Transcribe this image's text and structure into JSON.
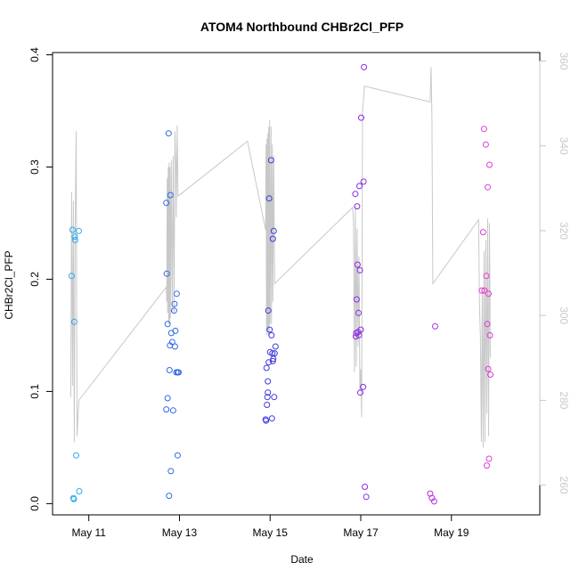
{
  "chart_data": {
    "type": "scatter",
    "title": "ATOM4 Northbound CHBr2Cl_PFP",
    "xlabel": "Date",
    "ylabel": "CHBr2Cl_PFP",
    "x_unit": "days since May 1 (day 10 = May 11)",
    "xlim": [
      9.2,
      19.95
    ],
    "ylim": [
      -0.01,
      0.402
    ],
    "y2lim": [
      253,
      362
    ],
    "x_ticks": [
      {
        "value": 10,
        "label": "May 11"
      },
      {
        "value": 12,
        "label": "May 13"
      },
      {
        "value": 14,
        "label": "May 15"
      },
      {
        "value": 16,
        "label": "May 17"
      },
      {
        "value": 18,
        "label": "May 19"
      }
    ],
    "y_ticks": [
      {
        "value": 0.0,
        "label": "0.0"
      },
      {
        "value": 0.1,
        "label": "0.1"
      },
      {
        "value": 0.2,
        "label": "0.2"
      },
      {
        "value": 0.3,
        "label": "0.3"
      },
      {
        "value": 0.4,
        "label": "0.4"
      }
    ],
    "y2_ticks": [
      {
        "value": 260,
        "label": "260"
      },
      {
        "value": 280,
        "label": "280"
      },
      {
        "value": 300,
        "label": "300"
      },
      {
        "value": 320,
        "label": "320"
      },
      {
        "value": 340,
        "label": "340"
      },
      {
        "value": 360,
        "label": "360"
      }
    ],
    "points": [
      {
        "x": 9.62,
        "y": 0.203,
        "color": "#29a9f0"
      },
      {
        "x": 9.64,
        "y": 0.244,
        "color": "#29a9f0"
      },
      {
        "x": 9.66,
        "y": 0.005,
        "color": "#29a9f0"
      },
      {
        "x": 9.67,
        "y": 0.004,
        "color": "#29a9f0"
      },
      {
        "x": 9.68,
        "y": 0.162,
        "color": "#29a9f0"
      },
      {
        "x": 9.69,
        "y": 0.238,
        "color": "#29a9f0"
      },
      {
        "x": 9.7,
        "y": 0.235,
        "color": "#29a9f0"
      },
      {
        "x": 9.72,
        "y": 0.043,
        "color": "#29a9f0"
      },
      {
        "x": 9.78,
        "y": 0.243,
        "color": "#29a9f0"
      },
      {
        "x": 9.79,
        "y": 0.011,
        "color": "#29a9f0"
      },
      {
        "x": 11.71,
        "y": 0.268,
        "color": "#2f6be8"
      },
      {
        "x": 11.71,
        "y": 0.084,
        "color": "#2f6be8"
      },
      {
        "x": 11.72,
        "y": 0.205,
        "color": "#2f6be8"
      },
      {
        "x": 11.74,
        "y": 0.16,
        "color": "#2f6be8"
      },
      {
        "x": 11.74,
        "y": 0.094,
        "color": "#2f6be8"
      },
      {
        "x": 11.76,
        "y": 0.33,
        "color": "#2f6be8"
      },
      {
        "x": 11.77,
        "y": 0.007,
        "color": "#2f6be8"
      },
      {
        "x": 11.78,
        "y": 0.119,
        "color": "#2f6be8"
      },
      {
        "x": 11.79,
        "y": 0.141,
        "color": "#2f6be8"
      },
      {
        "x": 11.8,
        "y": 0.275,
        "color": "#2f6be8"
      },
      {
        "x": 11.81,
        "y": 0.029,
        "color": "#2f6be8"
      },
      {
        "x": 11.82,
        "y": 0.152,
        "color": "#2f6be8"
      },
      {
        "x": 11.84,
        "y": 0.144,
        "color": "#2f6be8"
      },
      {
        "x": 11.86,
        "y": 0.083,
        "color": "#2f6be8"
      },
      {
        "x": 11.88,
        "y": 0.172,
        "color": "#2f6be8"
      },
      {
        "x": 11.89,
        "y": 0.178,
        "color": "#2f6be8"
      },
      {
        "x": 11.9,
        "y": 0.14,
        "color": "#2f6be8"
      },
      {
        "x": 11.91,
        "y": 0.154,
        "color": "#2f6be8"
      },
      {
        "x": 11.93,
        "y": 0.117,
        "color": "#2f6be8"
      },
      {
        "x": 11.94,
        "y": 0.187,
        "color": "#2f6be8"
      },
      {
        "x": 11.96,
        "y": 0.043,
        "color": "#2f6be8"
      },
      {
        "x": 11.96,
        "y": 0.117,
        "color": "#2f6be8"
      },
      {
        "x": 11.98,
        "y": 0.117,
        "color": "#2f6be8"
      },
      {
        "x": 13.9,
        "y": 0.075,
        "color": "#3d3ae0"
      },
      {
        "x": 13.91,
        "y": 0.074,
        "color": "#3d3ae0"
      },
      {
        "x": 13.92,
        "y": 0.121,
        "color": "#3d3ae0"
      },
      {
        "x": 13.93,
        "y": 0.088,
        "color": "#3d3ae0"
      },
      {
        "x": 13.94,
        "y": 0.095,
        "color": "#3d3ae0"
      },
      {
        "x": 13.95,
        "y": 0.109,
        "color": "#3d3ae0"
      },
      {
        "x": 13.95,
        "y": 0.099,
        "color": "#3d3ae0"
      },
      {
        "x": 13.96,
        "y": 0.172,
        "color": "#3d3ae0"
      },
      {
        "x": 13.97,
        "y": 0.126,
        "color": "#3d3ae0"
      },
      {
        "x": 13.98,
        "y": 0.272,
        "color": "#3d3ae0"
      },
      {
        "x": 13.99,
        "y": 0.155,
        "color": "#3d3ae0"
      },
      {
        "x": 14.0,
        "y": 0.135,
        "color": "#3d3ae0"
      },
      {
        "x": 14.02,
        "y": 0.306,
        "color": "#3d3ae0"
      },
      {
        "x": 14.03,
        "y": 0.15,
        "color": "#3d3ae0"
      },
      {
        "x": 14.04,
        "y": 0.076,
        "color": "#3d3ae0"
      },
      {
        "x": 14.05,
        "y": 0.134,
        "color": "#3d3ae0"
      },
      {
        "x": 14.06,
        "y": 0.236,
        "color": "#3d3ae0"
      },
      {
        "x": 14.06,
        "y": 0.127,
        "color": "#3d3ae0"
      },
      {
        "x": 14.07,
        "y": 0.129,
        "color": "#3d3ae0"
      },
      {
        "x": 14.08,
        "y": 0.243,
        "color": "#3d3ae0"
      },
      {
        "x": 14.09,
        "y": 0.095,
        "color": "#3d3ae0"
      },
      {
        "x": 14.1,
        "y": 0.134,
        "color": "#3d3ae0"
      },
      {
        "x": 14.12,
        "y": 0.14,
        "color": "#3d3ae0"
      },
      {
        "x": 15.88,
        "y": 0.276,
        "color": "#8a2be2"
      },
      {
        "x": 15.89,
        "y": 0.149,
        "color": "#8a2be2"
      },
      {
        "x": 15.9,
        "y": 0.152,
        "color": "#8a2be2"
      },
      {
        "x": 15.91,
        "y": 0.182,
        "color": "#8a2be2"
      },
      {
        "x": 15.92,
        "y": 0.265,
        "color": "#8a2be2"
      },
      {
        "x": 15.93,
        "y": 0.213,
        "color": "#8a2be2"
      },
      {
        "x": 15.94,
        "y": 0.153,
        "color": "#8a2be2"
      },
      {
        "x": 15.95,
        "y": 0.17,
        "color": "#8a2be2"
      },
      {
        "x": 15.96,
        "y": 0.15,
        "color": "#8a2be2"
      },
      {
        "x": 15.97,
        "y": 0.283,
        "color": "#8a2be2"
      },
      {
        "x": 15.98,
        "y": 0.208,
        "color": "#8a2be2"
      },
      {
        "x": 15.99,
        "y": 0.099,
        "color": "#8a2be2"
      },
      {
        "x": 16.0,
        "y": 0.155,
        "color": "#8a2be2"
      },
      {
        "x": 16.01,
        "y": 0.344,
        "color": "#8a2be2"
      },
      {
        "x": 16.05,
        "y": 0.104,
        "color": "#8a2be2"
      },
      {
        "x": 16.06,
        "y": 0.287,
        "color": "#8a2be2"
      },
      {
        "x": 16.07,
        "y": 0.389,
        "color": "#8a2be2"
      },
      {
        "x": 16.09,
        "y": 0.015,
        "color": "#8a2be2"
      },
      {
        "x": 16.12,
        "y": 0.006,
        "color": "#8a2be2"
      },
      {
        "x": 17.53,
        "y": 0.009,
        "color": "#b52fe0"
      },
      {
        "x": 17.57,
        "y": 0.005,
        "color": "#b52fe0"
      },
      {
        "x": 17.62,
        "y": 0.002,
        "color": "#b52fe0"
      },
      {
        "x": 17.64,
        "y": 0.158,
        "color": "#b52fe0"
      },
      {
        "x": 18.67,
        "y": 0.19,
        "color": "#e23ad6"
      },
      {
        "x": 18.7,
        "y": 0.242,
        "color": "#e23ad6"
      },
      {
        "x": 18.72,
        "y": 0.334,
        "color": "#e23ad6"
      },
      {
        "x": 18.73,
        "y": 0.19,
        "color": "#e23ad6"
      },
      {
        "x": 18.76,
        "y": 0.32,
        "color": "#e23ad6"
      },
      {
        "x": 18.77,
        "y": 0.203,
        "color": "#e23ad6"
      },
      {
        "x": 18.78,
        "y": 0.034,
        "color": "#e23ad6"
      },
      {
        "x": 18.79,
        "y": 0.16,
        "color": "#e23ad6"
      },
      {
        "x": 18.8,
        "y": 0.282,
        "color": "#e23ad6"
      },
      {
        "x": 18.81,
        "y": 0.12,
        "color": "#e23ad6"
      },
      {
        "x": 18.82,
        "y": 0.187,
        "color": "#e23ad6"
      },
      {
        "x": 18.83,
        "y": 0.04,
        "color": "#e23ad6"
      },
      {
        "x": 18.84,
        "y": 0.302,
        "color": "#e23ad6"
      },
      {
        "x": 18.85,
        "y": 0.15,
        "color": "#e23ad6"
      },
      {
        "x": 18.86,
        "y": 0.115,
        "color": "#e23ad6"
      }
    ],
    "trace": [
      [
        9.6,
        0.095
      ],
      [
        9.62,
        0.278
      ],
      [
        9.64,
        0.105
      ],
      [
        9.66,
        0.27
      ],
      [
        9.68,
        0.055
      ],
      [
        9.7,
        0.25
      ],
      [
        9.72,
        0.332
      ],
      [
        9.74,
        0.06
      ],
      [
        9.78,
        0.092
      ],
      [
        11.71,
        0.193
      ],
      [
        11.72,
        0.18
      ],
      [
        11.73,
        0.29
      ],
      [
        11.74,
        0.17
      ],
      [
        11.75,
        0.3
      ],
      [
        11.76,
        0.16
      ],
      [
        11.77,
        0.304
      ],
      [
        11.78,
        0.16
      ],
      [
        11.79,
        0.3
      ],
      [
        11.8,
        0.165
      ],
      [
        11.82,
        0.306
      ],
      [
        11.84,
        0.17
      ],
      [
        11.86,
        0.31
      ],
      [
        11.88,
        0.17
      ],
      [
        11.9,
        0.332
      ],
      [
        11.92,
        0.3
      ],
      [
        11.93,
        0.255
      ],
      [
        11.95,
        0.337
      ],
      [
        11.97,
        0.274
      ],
      [
        13.5,
        0.323
      ],
      [
        13.9,
        0.244
      ],
      [
        13.91,
        0.32
      ],
      [
        13.92,
        0.15
      ],
      [
        13.93,
        0.325
      ],
      [
        13.94,
        0.155
      ],
      [
        13.95,
        0.33
      ],
      [
        13.96,
        0.15
      ],
      [
        13.97,
        0.336
      ],
      [
        13.98,
        0.15
      ],
      [
        13.99,
        0.342
      ],
      [
        14.0,
        0.16
      ],
      [
        14.02,
        0.336
      ],
      [
        14.03,
        0.16
      ],
      [
        14.05,
        0.32
      ],
      [
        14.06,
        0.18
      ],
      [
        14.08,
        0.31
      ],
      [
        14.1,
        0.196
      ],
      [
        15.82,
        0.264
      ],
      [
        15.84,
        0.25
      ],
      [
        15.86,
        0.117
      ],
      [
        15.88,
        0.265
      ],
      [
        15.9,
        0.122
      ],
      [
        15.92,
        0.245
      ],
      [
        15.94,
        0.14
      ],
      [
        15.96,
        0.22
      ],
      [
        15.98,
        0.1
      ],
      [
        16.0,
        0.12
      ],
      [
        16.02,
        0.077
      ],
      [
        16.04,
        0.352
      ],
      [
        16.06,
        0.36
      ],
      [
        16.08,
        0.372
      ],
      [
        17.53,
        0.358
      ],
      [
        17.55,
        0.389
      ],
      [
        17.57,
        0.345
      ],
      [
        17.59,
        0.196
      ],
      [
        18.6,
        0.253
      ],
      [
        18.62,
        0.176
      ],
      [
        18.64,
        0.15
      ],
      [
        18.66,
        0.055
      ],
      [
        18.68,
        0.19
      ],
      [
        18.7,
        0.05
      ],
      [
        18.72,
        0.225
      ],
      [
        18.74,
        0.055
      ],
      [
        18.76,
        0.235
      ],
      [
        18.78,
        0.08
      ],
      [
        18.8,
        0.254
      ],
      [
        18.82,
        0.06
      ],
      [
        18.84,
        0.25
      ],
      [
        18.86,
        0.13
      ]
    ]
  }
}
